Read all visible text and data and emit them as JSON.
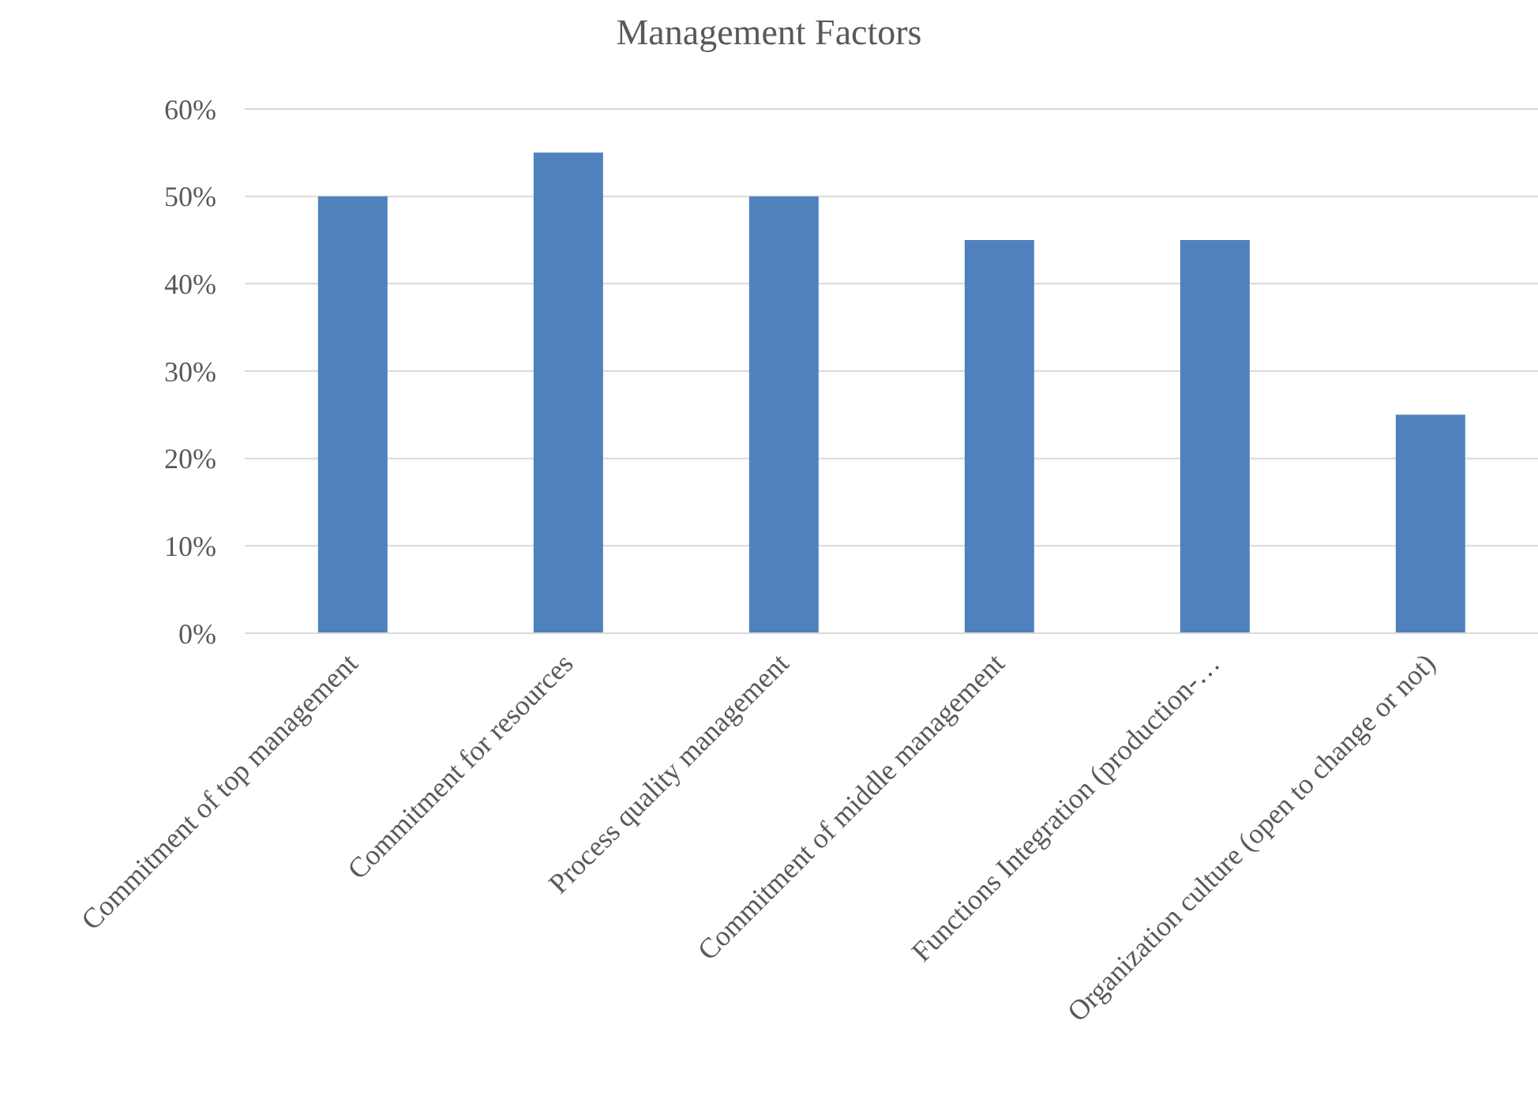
{
  "chart_data": {
    "type": "bar",
    "title": "Management Factors",
    "categories": [
      "Commitment of top management",
      "Commitment for resources",
      "Process quality management",
      "Commitment of middle management",
      "Functions Integration (production-…",
      "Organization culture (open to change or not)"
    ],
    "values": [
      50,
      55,
      50,
      45,
      45,
      25
    ],
    "color": "#4f81bd",
    "ylim": [
      0,
      60
    ],
    "yticks": [
      {
        "value": 0,
        "label": "0%"
      },
      {
        "value": 10,
        "label": "10%"
      },
      {
        "value": 20,
        "label": "20%"
      },
      {
        "value": 30,
        "label": "30%"
      },
      {
        "value": 40,
        "label": "40%"
      },
      {
        "value": 50,
        "label": "50%"
      },
      {
        "value": 60,
        "label": "60%"
      }
    ],
    "grid": "y"
  }
}
